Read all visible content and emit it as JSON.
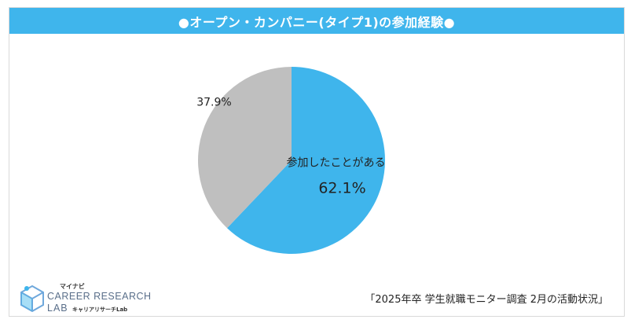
{
  "title": "●オープン・カンパニー(タイプ1)の参加経験●",
  "source_note": "「2025年卒 学生就職モニター調査  2月の活動状況」",
  "logo": {
    "small_label": "マイナビ",
    "main_label": "CAREER RESEARCH",
    "lab_label": "LAB",
    "sub_label": "キャリアリサーチLab"
  },
  "colors": {
    "title_bar": "#3fb5ec",
    "participated": "#3fb5ec",
    "not_participated": "#bfbfbf"
  },
  "chart_data": {
    "type": "pie",
    "title": "●オープン・カンパニー(タイプ1)の参加経験●",
    "slices": [
      {
        "label": "参加したことがある",
        "value": 62.1,
        "value_label": "62.1%"
      },
      {
        "label": "",
        "value": 37.9,
        "value_label": "37.9%"
      }
    ],
    "start": "12 o'clock",
    "direction": "clockwise"
  }
}
